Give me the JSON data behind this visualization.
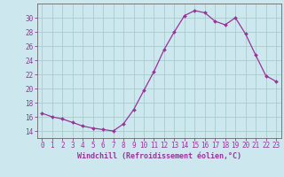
{
  "x": [
    0,
    1,
    2,
    3,
    4,
    5,
    6,
    7,
    8,
    9,
    10,
    11,
    12,
    13,
    14,
    15,
    16,
    17,
    18,
    19,
    20,
    21,
    22,
    23
  ],
  "y": [
    16.5,
    16.0,
    15.7,
    15.2,
    14.7,
    14.4,
    14.2,
    14.0,
    15.0,
    17.0,
    19.7,
    22.4,
    25.5,
    28.0,
    30.3,
    31.0,
    30.7,
    29.5,
    29.0,
    30.0,
    27.7,
    24.7,
    21.8,
    21.0
  ],
  "line_color": "#993399",
  "marker": "D",
  "marker_size": 2.0,
  "bg_color": "#cce8ee",
  "grid_color": "#aacccc",
  "axis_color": "#993399",
  "spine_color": "#666666",
  "xlabel": "Windchill (Refroidissement éolien,°C)",
  "xlim": [
    -0.5,
    23.5
  ],
  "ylim": [
    13.0,
    32.0
  ],
  "yticks": [
    14,
    16,
    18,
    20,
    22,
    24,
    26,
    28,
    30
  ],
  "xticks": [
    0,
    1,
    2,
    3,
    4,
    5,
    6,
    7,
    8,
    9,
    10,
    11,
    12,
    13,
    14,
    15,
    16,
    17,
    18,
    19,
    20,
    21,
    22,
    23
  ],
  "tick_fontsize": 5.5,
  "label_fontsize": 6.0,
  "tick_color": "#993399",
  "label_color": "#993399"
}
